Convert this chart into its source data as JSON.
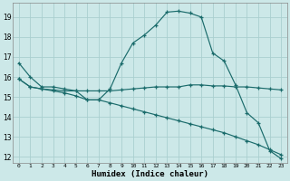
{
  "xlabel": "Humidex (Indice chaleur)",
  "bg_color": "#cce8e8",
  "grid_color": "#aacfcf",
  "line_color": "#1a6b6b",
  "xlim": [
    -0.5,
    23.5
  ],
  "ylim": [
    11.7,
    19.7
  ],
  "yticks": [
    12,
    13,
    14,
    15,
    16,
    17,
    18,
    19
  ],
  "xticks": [
    0,
    1,
    2,
    3,
    4,
    5,
    6,
    7,
    8,
    9,
    10,
    11,
    12,
    13,
    14,
    15,
    16,
    17,
    18,
    19,
    20,
    21,
    22,
    23
  ],
  "line1_x": [
    0,
    1,
    2,
    3,
    4,
    5,
    6,
    7,
    8,
    9,
    10,
    11,
    12,
    13,
    14,
    15,
    16,
    17,
    18,
    19,
    20,
    21,
    22,
    23
  ],
  "line1_y": [
    16.7,
    16.0,
    15.5,
    15.5,
    15.4,
    15.3,
    14.85,
    14.85,
    15.4,
    16.7,
    17.7,
    18.1,
    18.6,
    19.25,
    19.3,
    19.2,
    19.0,
    17.2,
    16.8,
    15.6,
    14.2,
    13.7,
    12.3,
    11.9
  ],
  "line2_x": [
    0,
    1,
    2,
    3,
    4,
    5,
    6,
    7,
    8,
    9,
    10,
    11,
    12,
    13,
    14,
    15,
    16,
    17,
    18,
    19,
    20,
    21,
    22,
    23
  ],
  "line2_y": [
    15.9,
    15.5,
    15.4,
    15.35,
    15.3,
    15.3,
    15.3,
    15.3,
    15.3,
    15.35,
    15.4,
    15.45,
    15.5,
    15.5,
    15.5,
    15.6,
    15.6,
    15.55,
    15.55,
    15.5,
    15.5,
    15.45,
    15.4,
    15.35
  ],
  "line3_x": [
    0,
    1,
    2,
    3,
    4,
    5,
    6,
    7,
    8,
    9,
    10,
    11,
    12,
    13,
    14,
    15,
    16,
    17,
    18,
    19,
    20,
    21,
    22,
    23
  ],
  "line3_y": [
    15.9,
    15.5,
    15.4,
    15.3,
    15.2,
    15.05,
    14.85,
    14.85,
    14.7,
    14.55,
    14.4,
    14.25,
    14.1,
    13.95,
    13.8,
    13.65,
    13.5,
    13.35,
    13.2,
    13.0,
    12.8,
    12.6,
    12.35,
    12.1
  ]
}
